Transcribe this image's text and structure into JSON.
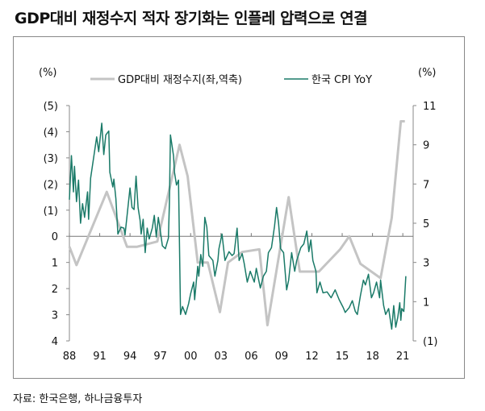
{
  "title": "GDP대비 재정수지 적자 장기화는 인플레 압력으로 연결",
  "source": "자료:  한국은행, 하나금융투자",
  "chart_data": {
    "type": "line",
    "left_unit": "(%)",
    "right_unit": "(%)",
    "left_axis": {
      "range": [
        -5,
        4
      ],
      "reversed": true,
      "ticks": [
        -5,
        -4,
        -3,
        -2,
        -1,
        0,
        1,
        2,
        3,
        4
      ],
      "tick_labels": [
        "(5)",
        "(4)",
        "(3)",
        "(2)",
        "(1)",
        "0",
        "1",
        "2",
        "3",
        "4"
      ]
    },
    "right_axis": {
      "range": [
        -1,
        11
      ],
      "ticks": [
        -1,
        1,
        3,
        5,
        7,
        9,
        11
      ],
      "tick_labels": [
        "(1)",
        "1",
        "3",
        "5",
        "7",
        "9",
        "11"
      ]
    },
    "x_axis": {
      "range": [
        1988,
        2022
      ],
      "ticks": [
        1988,
        1991,
        1994,
        1997,
        2000,
        2003,
        2006,
        2009,
        2012,
        2015,
        2018,
        2021
      ],
      "tick_labels": [
        "88",
        "91",
        "94",
        "97",
        "00",
        "03",
        "06",
        "09",
        "12",
        "15",
        "18",
        "21"
      ]
    },
    "grid": false,
    "legend_placement": "top",
    "series": [
      {
        "name": "GDP대비 재정수지(좌,역축)",
        "axis": "left",
        "color": "#c4c4c4",
        "x": [
          1988.0,
          1988.7,
          1991.7,
          1993.7,
          1994.7,
          1996.7,
          1998.9,
          1999.7,
          2000.7,
          2001.7,
          2002.9,
          2003.7,
          2005.1,
          2006.8,
          2007.6,
          2009.7,
          2010.8,
          2012.7,
          2014.8,
          2015.7,
          2016.8,
          2018.8,
          2019.9,
          2020.8,
          2021.2
        ],
        "y": [
          0.4,
          1.1,
          -1.7,
          0.4,
          0.4,
          0.2,
          -3.5,
          -2.3,
          1.0,
          1.0,
          2.9,
          1.0,
          0.6,
          0.5,
          3.4,
          -1.5,
          1.35,
          1.35,
          0.5,
          0.0,
          1.05,
          1.6,
          -0.7,
          -4.4,
          -4.4
        ]
      },
      {
        "name": "한국 CPI YoY",
        "axis": "right",
        "color": "#1a7a68",
        "x": [
          1988.0,
          1988.2,
          1988.4,
          1988.5,
          1988.7,
          1988.9,
          1989.1,
          1989.3,
          1989.5,
          1989.8,
          1989.9,
          1990.1,
          1990.5,
          1990.7,
          1990.9,
          1991.2,
          1991.4,
          1991.6,
          1991.9,
          1992.0,
          1992.3,
          1992.4,
          1992.6,
          1992.8,
          1993.1,
          1993.4,
          1993.5,
          1994.0,
          1994.2,
          1994.4,
          1994.6,
          1994.8,
          1995.0,
          1995.1,
          1995.3,
          1995.5,
          1995.7,
          1995.9,
          1996.2,
          1996.4,
          1996.6,
          1996.8,
          1997.0,
          1997.2,
          1997.5,
          1997.8,
          1997.9,
          1998.0,
          1998.3,
          1998.4,
          1998.6,
          1998.8,
          1999.0,
          1999.2,
          1999.5,
          1999.8,
          2000.0,
          2000.3,
          2000.4,
          2000.7,
          2000.8,
          2001.0,
          2001.2,
          2001.4,
          2001.6,
          2001.8,
          2002.2,
          2002.4,
          2002.7,
          2002.8,
          2003.1,
          2003.4,
          2003.8,
          2004.1,
          2004.3,
          2004.6,
          2004.8,
          2005.1,
          2005.3,
          2005.6,
          2005.9,
          2006.3,
          2006.5,
          2006.9,
          2007.2,
          2007.5,
          2007.7,
          2008.0,
          2008.3,
          2008.5,
          2008.7,
          2008.9,
          2009.2,
          2009.5,
          2009.7,
          2010.0,
          2010.3,
          2010.5,
          2010.9,
          2011.2,
          2011.5,
          2011.7,
          2011.9,
          2012.1,
          2012.4,
          2012.5,
          2012.8,
          2013.1,
          2013.5,
          2013.9,
          2014.3,
          2014.7,
          2015.1,
          2015.3,
          2015.7,
          2016.0,
          2016.3,
          2016.5,
          2016.8,
          2017.1,
          2017.3,
          2017.6,
          2017.9,
          2018.1,
          2018.4,
          2018.7,
          2018.8,
          2019.1,
          2019.3,
          2019.6,
          2019.9,
          2020.1,
          2020.3,
          2020.5,
          2020.7,
          2020.8,
          2020.9,
          2021.1,
          2021.3
        ],
        "y": [
          6.2,
          8.45,
          6.6,
          7.9,
          6.1,
          7.2,
          5.0,
          6.0,
          5.3,
          6.6,
          5.2,
          7.3,
          8.7,
          9.4,
          8.65,
          10.1,
          8.5,
          9.5,
          9.7,
          7.6,
          6.85,
          7.25,
          6.25,
          4.45,
          4.8,
          4.75,
          4.4,
          6.8,
          5.8,
          5.7,
          7.4,
          5.8,
          5.15,
          4.45,
          5.2,
          3.5,
          4.75,
          4.2,
          4.75,
          5.4,
          4.3,
          5.3,
          4.6,
          3.85,
          3.7,
          4.25,
          6.0,
          9.5,
          8.45,
          7.6,
          6.95,
          7.2,
          0.35,
          0.75,
          0.35,
          0.9,
          1.4,
          2.0,
          1.1,
          2.8,
          2.3,
          3.4,
          2.8,
          5.3,
          4.8,
          3.35,
          3.1,
          2.3,
          3.1,
          3.7,
          4.45,
          3.1,
          3.55,
          3.35,
          3.45,
          4.75,
          3.1,
          3.45,
          2.95,
          2.0,
          2.55,
          2.0,
          2.7,
          1.7,
          2.3,
          2.55,
          3.5,
          3.75,
          4.85,
          5.8,
          5.0,
          3.7,
          3.5,
          1.6,
          2.1,
          3.5,
          2.55,
          3.1,
          3.75,
          3.95,
          4.6,
          3.55,
          4.15,
          3.1,
          2.55,
          1.45,
          2.0,
          1.45,
          1.5,
          1.2,
          1.6,
          1.1,
          0.7,
          0.45,
          0.7,
          1.05,
          0.5,
          0.35,
          1.3,
          2.1,
          1.85,
          2.4,
          1.2,
          1.45,
          2.0,
          1.2,
          2.1,
          0.8,
          0.35,
          0.65,
          -0.4,
          0.8,
          -0.3,
          0.2,
          0.95,
          0.05,
          0.65,
          0.5,
          2.3
        ]
      }
    ]
  }
}
